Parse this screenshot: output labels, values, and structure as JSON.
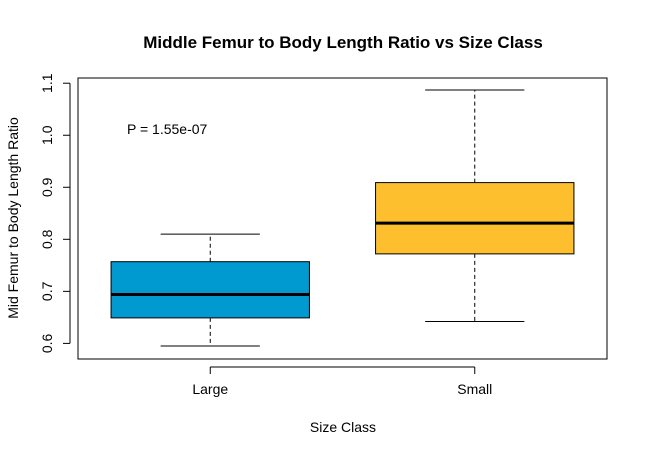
{
  "chart_data": {
    "type": "boxplot",
    "title": "Middle Femur to Body Length Ratio vs Size Class",
    "xlabel": "Size Class",
    "ylabel": "Mid Femur to Body Length Ratio",
    "categories": [
      "Large",
      "Small"
    ],
    "ylim": [
      0.57,
      1.11
    ],
    "yticks": [
      0.6,
      0.7,
      0.8,
      0.9,
      1.0,
      1.1
    ],
    "ytick_labels": [
      "0.6",
      "0.7",
      "0.8",
      "0.9",
      "1.0",
      "1.1"
    ],
    "boxes": [
      {
        "category": "Large",
        "min": 0.595,
        "q1": 0.649,
        "median": 0.694,
        "q3": 0.757,
        "max": 0.81,
        "color": "#0099d0"
      },
      {
        "category": "Small",
        "min": 0.642,
        "q1": 0.772,
        "median": 0.831,
        "q3": 0.909,
        "max": 1.087,
        "color": "#fdbf2d"
      }
    ],
    "annotation": "P = 1.55e-07",
    "grid": false,
    "legend": "none"
  }
}
